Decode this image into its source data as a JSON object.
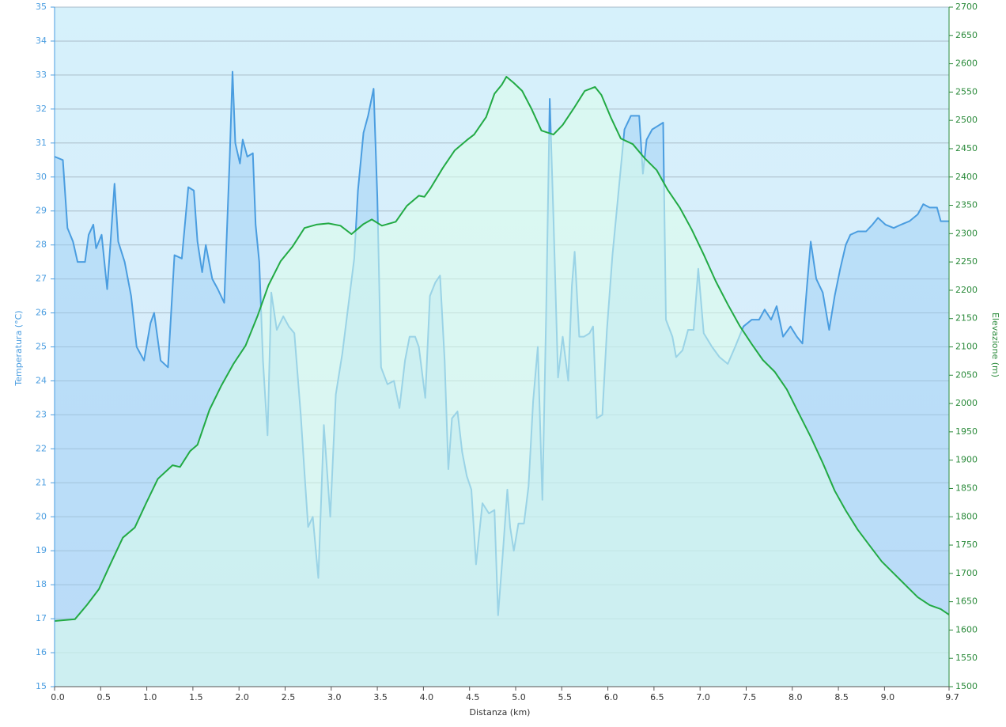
{
  "chart_data": {
    "type": "line",
    "xlabel": "Distanza  (km)",
    "ylabel": "Temperatura (°C)",
    "y2label": "Elevazione (m)",
    "xlim": [
      0,
      9.7
    ],
    "ylim": [
      15,
      35
    ],
    "y2lim": [
      1500,
      2700
    ],
    "xticks": [
      {
        "value": 0,
        "label": "0.0"
      },
      0.5,
      {
        "value": 1,
        "label": "1.0"
      },
      1.5,
      {
        "value": 2,
        "label": "2.0"
      },
      2.5,
      {
        "value": 3,
        "label": "3.0"
      },
      3.5,
      {
        "value": 4,
        "label": "4.0"
      },
      4.5,
      {
        "value": 5,
        "label": "5.0"
      },
      5.5,
      {
        "value": 6,
        "label": "6.0"
      },
      6.5,
      {
        "value": 7,
        "label": "7.0"
      },
      7.5,
      {
        "value": 8,
        "label": "8.0"
      },
      8.5,
      {
        "value": 9,
        "label": "9.0"
      },
      9.7
    ],
    "yticks": [
      15,
      16,
      17,
      18,
      19,
      20,
      21,
      22,
      23,
      24,
      25,
      26,
      27,
      28,
      29,
      30,
      31,
      32,
      33,
      34,
      35
    ],
    "y2ticks": [
      1500,
      1550,
      1600,
      1650,
      1700,
      1750,
      1800,
      1850,
      1900,
      1950,
      2000,
      2050,
      2100,
      2150,
      2200,
      2250,
      2300,
      2350,
      2400,
      2450,
      2500,
      2550,
      2600,
      2650,
      2700
    ],
    "grid": true,
    "series": [
      {
        "color": "#4a9de0",
        "axis": "y",
        "x": [
          0.0,
          0.09,
          0.14,
          0.2,
          0.25,
          0.33,
          0.37,
          0.42,
          0.45,
          0.51,
          0.57,
          0.61,
          0.65,
          0.69,
          0.76,
          0.83,
          0.89,
          0.97,
          1.04,
          1.08,
          1.15,
          1.23,
          1.3,
          1.38,
          1.45,
          1.51,
          1.55,
          1.6,
          1.64,
          1.71,
          1.77,
          1.84,
          1.9,
          1.93,
          1.96,
          2.01,
          2.04,
          2.09,
          2.15,
          2.18,
          2.22,
          2.26,
          2.31,
          2.35,
          2.41,
          2.48,
          2.54,
          2.6,
          2.67,
          2.71,
          2.75,
          2.8,
          2.86,
          2.92,
          2.99,
          3.05,
          3.12,
          3.18,
          3.25,
          3.29,
          3.35,
          3.4,
          3.46,
          3.5,
          3.54,
          3.61,
          3.68,
          3.74,
          3.8,
          3.85,
          3.91,
          3.95,
          4.02,
          4.07,
          4.13,
          4.18,
          4.23,
          4.27,
          4.31,
          4.37,
          4.42,
          4.47,
          4.52,
          4.57,
          4.64,
          4.71,
          4.77,
          4.81,
          4.86,
          4.91,
          4.94,
          4.98,
          5.03,
          5.09,
          5.14,
          5.19,
          5.24,
          5.29,
          5.33,
          5.37,
          5.41,
          5.46,
          5.51,
          5.57,
          5.61,
          5.64,
          5.69,
          5.74,
          5.8,
          5.84,
          5.88,
          5.94,
          5.99,
          6.05,
          6.11,
          6.18,
          6.25,
          6.34,
          6.38,
          6.42,
          6.48,
          6.54,
          6.6,
          6.63,
          6.7,
          6.74,
          6.81,
          6.87,
          6.93,
          6.98,
          7.04,
          7.13,
          7.21,
          7.3,
          7.38,
          7.47,
          7.56,
          7.64,
          7.7,
          7.77,
          7.83,
          7.9,
          7.98,
          8.05,
          8.11,
          8.16,
          8.2,
          8.26,
          8.33,
          8.4,
          8.46,
          8.52,
          8.58,
          8.63,
          8.71,
          8.8,
          8.87,
          8.93,
          9.01,
          9.1,
          9.18,
          9.27,
          9.36,
          9.42,
          9.49,
          9.57,
          9.61,
          9.7
        ],
        "values": [
          30.6,
          30.5,
          28.5,
          28.1,
          27.5,
          27.5,
          28.3,
          28.6,
          27.9,
          28.3,
          26.7,
          28.2,
          29.8,
          28.1,
          27.5,
          26.5,
          25.0,
          24.6,
          25.7,
          26.0,
          24.6,
          24.4,
          27.7,
          27.6,
          29.7,
          29.6,
          28.1,
          27.2,
          28.0,
          27.0,
          26.7,
          26.3,
          30.6,
          33.1,
          31.0,
          30.4,
          31.1,
          30.6,
          30.7,
          28.6,
          27.5,
          24.6,
          22.4,
          26.6,
          25.5,
          25.9,
          25.6,
          25.4,
          23.0,
          21.3,
          19.7,
          20.0,
          18.2,
          22.7,
          20.0,
          23.6,
          24.8,
          26.1,
          27.6,
          29.6,
          31.3,
          31.8,
          32.6,
          29.4,
          24.4,
          23.9,
          24.0,
          23.2,
          24.6,
          25.3,
          25.3,
          25.0,
          23.5,
          26.5,
          26.9,
          27.1,
          24.6,
          21.4,
          22.9,
          23.1,
          21.9,
          21.2,
          20.8,
          18.6,
          20.4,
          20.1,
          20.2,
          17.1,
          18.9,
          20.8,
          19.7,
          19.0,
          19.8,
          19.8,
          20.9,
          23.4,
          25.0,
          20.5,
          25.9,
          32.3,
          28.8,
          24.1,
          25.3,
          24.0,
          26.8,
          27.8,
          25.3,
          25.3,
          25.4,
          25.6,
          22.9,
          23.0,
          25.5,
          27.7,
          29.4,
          31.4,
          31.8,
          31.8,
          30.1,
          31.1,
          31.4,
          31.5,
          31.6,
          25.8,
          25.3,
          24.7,
          24.9,
          25.5,
          25.5,
          27.3,
          25.4,
          25.0,
          24.7,
          24.5,
          25.0,
          25.6,
          25.8,
          25.8,
          26.1,
          25.8,
          26.2,
          25.3,
          25.6,
          25.3,
          25.1,
          26.8,
          28.1,
          27.0,
          26.6,
          25.5,
          26.5,
          27.3,
          28.0,
          28.3,
          28.4,
          28.4,
          28.6,
          28.8,
          28.6,
          28.5,
          28.6,
          28.7,
          28.9,
          29.2,
          29.1,
          29.1,
          28.7,
          28.7
        ]
      },
      {
        "color": "#22aa44",
        "axis": "y2",
        "x": [
          0.0,
          0.22,
          0.35,
          0.48,
          0.61,
          0.74,
          0.87,
          0.99,
          1.12,
          1.28,
          1.36,
          1.47,
          1.55,
          1.68,
          1.81,
          1.94,
          2.07,
          2.2,
          2.32,
          2.45,
          2.58,
          2.71,
          2.84,
          2.97,
          3.1,
          3.22,
          3.35,
          3.44,
          3.55,
          3.7,
          3.82,
          3.95,
          4.01,
          4.08,
          4.21,
          4.34,
          4.47,
          4.55,
          4.68,
          4.77,
          4.85,
          4.9,
          4.98,
          5.07,
          5.17,
          5.28,
          5.41,
          5.51,
          5.63,
          5.75,
          5.86,
          5.93,
          6.03,
          6.14,
          6.27,
          6.4,
          6.53,
          6.65,
          6.78,
          6.91,
          7.04,
          7.17,
          7.3,
          7.43,
          7.56,
          7.68,
          7.81,
          7.94,
          8.07,
          8.2,
          8.33,
          8.46,
          8.58,
          8.71,
          8.84,
          8.97,
          9.1,
          9.23,
          9.36,
          9.49,
          9.61,
          9.7
        ],
        "values": [
          1616,
          1619,
          1644,
          1672,
          1718,
          1763,
          1781,
          1823,
          1867,
          1891,
          1888,
          1916,
          1927,
          1989,
          2032,
          2070,
          2102,
          2154,
          2209,
          2251,
          2277,
          2310,
          2316,
          2318,
          2314,
          2299,
          2317,
          2325,
          2314,
          2321,
          2349,
          2367,
          2365,
          2381,
          2416,
          2447,
          2465,
          2475,
          2506,
          2547,
          2563,
          2577,
          2566,
          2552,
          2521,
          2482,
          2475,
          2492,
          2521,
          2552,
          2559,
          2545,
          2506,
          2468,
          2458,
          2433,
          2412,
          2377,
          2346,
          2307,
          2263,
          2216,
          2175,
          2137,
          2105,
          2077,
          2056,
          2025,
          1983,
          1941,
          1895,
          1846,
          1811,
          1777,
          1749,
          1721,
          1700,
          1679,
          1658,
          1644,
          1637,
          1627
        ]
      }
    ]
  }
}
